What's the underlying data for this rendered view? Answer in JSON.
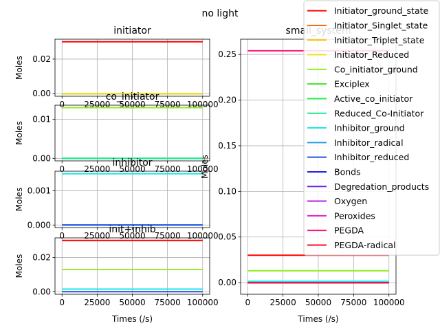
{
  "figure_title": "no light",
  "chart_data": [
    {
      "type": "line",
      "title": "initiator",
      "xlabel": "",
      "ylabel": "Moles",
      "xlim": [
        -5000,
        105000
      ],
      "ylim": [
        -0.0015,
        0.0315
      ],
      "xticks": [
        0,
        25000,
        50000,
        75000,
        100000
      ],
      "xtick_labels": [
        "0",
        "25000",
        "50000",
        "75000",
        "100000"
      ],
      "yticks": [
        0.0,
        0.02
      ],
      "ytick_labels": [
        "0.00",
        "0.02"
      ],
      "grid": true,
      "x": [
        0,
        100000
      ],
      "series": [
        {
          "name": "Initiator_ground_state",
          "color": "#ff0000",
          "values": [
            0.03,
            0.03
          ]
        },
        {
          "name": "Initiator_Singlet_state",
          "color": "#ff6a00",
          "values": [
            0.0,
            0.0
          ]
        },
        {
          "name": "Initiator_Triplet_state",
          "color": "#ffbf00",
          "values": [
            0.0,
            0.0
          ]
        },
        {
          "name": "Initiator_Reduced",
          "color": "#e6e61a",
          "values": [
            0.0,
            0.0
          ]
        }
      ]
    },
    {
      "type": "line",
      "title": "co_initiator",
      "xlabel": "",
      "ylabel": "Moles",
      "xlim": [
        -5000,
        105000
      ],
      "ylim": [
        -0.00065,
        0.01365
      ],
      "xticks": [
        0,
        25000,
        50000,
        75000,
        100000
      ],
      "xtick_labels": [
        "0",
        "25000",
        "50000",
        "75000",
        "100000"
      ],
      "yticks": [
        0.0,
        0.01
      ],
      "ytick_labels": [
        "0.00",
        "0.01"
      ],
      "grid": true,
      "x": [
        0,
        100000
      ],
      "series": [
        {
          "name": "Co_initiator_ground",
          "color": "#94f01e",
          "values": [
            0.013,
            0.013
          ]
        },
        {
          "name": "Exciplex",
          "color": "#3ce61e",
          "values": [
            0.0,
            0.0
          ]
        },
        {
          "name": "Active_co_initiator",
          "color": "#1ef046",
          "values": [
            0.0,
            0.0
          ]
        },
        {
          "name": "Reduced_Co-Initiator",
          "color": "#1ee696",
          "values": [
            0.0,
            0.0
          ]
        }
      ]
    },
    {
      "type": "line",
      "title": "inhibitor",
      "xlabel": "",
      "ylabel": "Moles",
      "xlim": [
        -5000,
        105000
      ],
      "ylim": [
        -7.5e-05,
        0.001575
      ],
      "xticks": [
        0,
        25000,
        50000,
        75000,
        100000
      ],
      "xtick_labels": [
        "0",
        "25000",
        "50000",
        "75000",
        "100000"
      ],
      "yticks": [
        0.0,
        0.001
      ],
      "ytick_labels": [
        "0.000",
        "0.001"
      ],
      "grid": true,
      "x": [
        0,
        100000
      ],
      "series": [
        {
          "name": "Inhibitor_ground",
          "color": "#1ee6e6",
          "values": [
            0.0015,
            0.0015
          ]
        },
        {
          "name": "Inhibitor_radical",
          "color": "#1e9ee6",
          "values": [
            0.0,
            0.0
          ]
        },
        {
          "name": "Inhibitor_reduced",
          "color": "#1e50e6",
          "values": [
            0.0,
            0.0
          ]
        }
      ]
    },
    {
      "type": "line",
      "title": "init+inhib",
      "xlabel": "Times (/s)",
      "ylabel": "Moles",
      "xlim": [
        -5000,
        105000
      ],
      "ylim": [
        -0.0015,
        0.0315
      ],
      "xticks": [
        0,
        25000,
        50000,
        75000,
        100000
      ],
      "xtick_labels": [
        "0",
        "25000",
        "50000",
        "75000",
        "100000"
      ],
      "yticks": [
        0.0,
        0.02
      ],
      "ytick_labels": [
        "0.00",
        "0.02"
      ],
      "grid": true,
      "x": [
        0,
        100000
      ],
      "series": [
        {
          "name": "Initiator_ground_state",
          "color": "#ff0000",
          "values": [
            0.03,
            0.03
          ]
        },
        {
          "name": "Co_initiator_ground",
          "color": "#94f01e",
          "values": [
            0.013,
            0.013
          ]
        },
        {
          "name": "Inhibitor_ground",
          "color": "#1ee6e6",
          "values": [
            0.0015,
            0.0015
          ]
        },
        {
          "name": "Inhibitor_reduced",
          "color": "#1e50e6",
          "values": [
            0.0,
            0.0
          ]
        }
      ]
    },
    {
      "type": "line",
      "title": "small_system",
      "xlabel": "Times (/s)",
      "ylabel": "Moles",
      "xlim": [
        -5000,
        105000
      ],
      "ylim": [
        -0.0127,
        0.2667
      ],
      "xticks": [
        0,
        25000,
        50000,
        75000,
        100000
      ],
      "xtick_labels": [
        "0",
        "25000",
        "50000",
        "75000",
        "100000"
      ],
      "yticks": [
        0.0,
        0.05,
        0.1,
        0.15,
        0.2,
        0.25
      ],
      "ytick_labels": [
        "0.00",
        "0.05",
        "0.10",
        "0.15",
        "0.20",
        "0.25"
      ],
      "grid": true,
      "legend_position": "upper-right",
      "x": [
        0,
        100000
      ],
      "series": [
        {
          "name": "Initiator_ground_state",
          "color": "#ff0000",
          "values": [
            0.03,
            0.03
          ]
        },
        {
          "name": "Initiator_Singlet_state",
          "color": "#ff6a00",
          "values": [
            0.0,
            0.0
          ]
        },
        {
          "name": "Initiator_Triplet_state",
          "color": "#ffbf00",
          "values": [
            0.0,
            0.0
          ]
        },
        {
          "name": "Initiator_Reduced",
          "color": "#e6e61a",
          "values": [
            0.0,
            0.0
          ]
        },
        {
          "name": "Co_initiator_ground",
          "color": "#94f01e",
          "values": [
            0.013,
            0.013
          ]
        },
        {
          "name": "Exciplex",
          "color": "#3ce61e",
          "values": [
            0.0,
            0.0
          ]
        },
        {
          "name": "Active_co_initiator",
          "color": "#1ef046",
          "values": [
            0.0,
            0.0
          ]
        },
        {
          "name": "Reduced_Co-Initiator",
          "color": "#1ee696",
          "values": [
            0.0,
            0.0
          ]
        },
        {
          "name": "Inhibitor_ground",
          "color": "#1ee6e6",
          "values": [
            0.0015,
            0.0015
          ]
        },
        {
          "name": "Inhibitor_radical",
          "color": "#1e9ee6",
          "values": [
            0.0,
            0.0
          ]
        },
        {
          "name": "Inhibitor_reduced",
          "color": "#1e50e6",
          "values": [
            0.0,
            0.0
          ]
        },
        {
          "name": "Bonds",
          "color": "#1e1ee6",
          "values": [
            0.0,
            0.0
          ]
        },
        {
          "name": "Degredation_products",
          "color": "#6a1ee6",
          "values": [
            0.0,
            0.0
          ]
        },
        {
          "name": "Oxygen",
          "color": "#b41ee6",
          "values": [
            0.0,
            0.0
          ]
        },
        {
          "name": "Peroxides",
          "color": "#e61ec8",
          "values": [
            0.0,
            0.0
          ]
        },
        {
          "name": "PEGDA",
          "color": "#ff1478",
          "values": [
            0.254,
            0.254
          ]
        },
        {
          "name": "PEGDA-radical",
          "color": "#ff0a28",
          "values": [
            0.0,
            0.0
          ]
        }
      ]
    }
  ]
}
